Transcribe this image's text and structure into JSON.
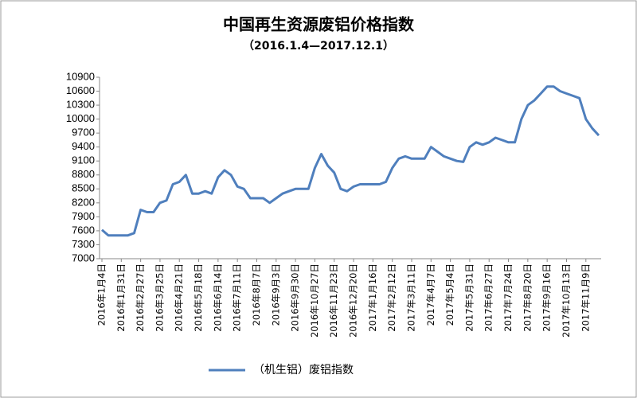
{
  "chart_data": {
    "type": "line",
    "title": "中国再生资源废铝价格指数",
    "subtitle": "（2016.1.4—2017.12.1）",
    "categories": [
      "2016年1月4日",
      null,
      null,
      "2016年1月31日",
      null,
      null,
      "2016年2月27日",
      null,
      null,
      "2016年3月25日",
      null,
      null,
      "2016年4月21日",
      null,
      null,
      "2016年5月18日",
      null,
      null,
      "2016年6月14日",
      null,
      null,
      "2016年7月11日",
      null,
      null,
      "2016年8月7日",
      null,
      null,
      "2016年9月3日",
      null,
      null,
      "2016年9月30日",
      null,
      null,
      "2016年10月27日",
      null,
      null,
      "2016年11月23日",
      null,
      null,
      "2016年12月20日",
      null,
      null,
      "2017年1月16日",
      null,
      null,
      "2017年2月12日",
      null,
      null,
      "2017年3月11日",
      null,
      null,
      "2017年4月7日",
      null,
      null,
      "2017年5月4日",
      null,
      null,
      "2017年5月31日",
      null,
      null,
      "2017年6月27日",
      null,
      null,
      "2017年7月24日",
      null,
      null,
      "2017年8月20日",
      null,
      null,
      "2017年9月16日",
      null,
      null,
      "2017年10月13日",
      null,
      null,
      "2017年11月9日",
      null,
      null
    ],
    "series": [
      {
        "name": "（机生铝）废铝指数",
        "color": "#4f7fbd",
        "values": [
          7620,
          7500,
          7500,
          7500,
          7500,
          7550,
          8050,
          8000,
          8000,
          8200,
          8250,
          8600,
          8650,
          8800,
          8400,
          8400,
          8450,
          8400,
          8750,
          8900,
          8800,
          8550,
          8500,
          8300,
          8300,
          8300,
          8200,
          8300,
          8400,
          8450,
          8500,
          8500,
          8500,
          8950,
          9250,
          9000,
          8850,
          8500,
          8450,
          8550,
          8600,
          8600,
          8600,
          8600,
          8650,
          8950,
          9150,
          9200,
          9150,
          9150,
          9150,
          9400,
          9300,
          9200,
          9150,
          9100,
          9080,
          9400,
          9500,
          9450,
          9500,
          9600,
          9550,
          9500,
          9500,
          10000,
          10300,
          10400,
          10550,
          10700,
          10700,
          10600,
          10550,
          10500,
          10450,
          10000,
          9800,
          9650
        ]
      }
    ],
    "ylim": [
      7000,
      10900
    ],
    "yticks": [
      7000,
      7300,
      7600,
      7900,
      8200,
      8500,
      8800,
      9100,
      9400,
      9700,
      10000,
      10300,
      10600,
      10900
    ],
    "grid": false,
    "legend": "bottom"
  }
}
